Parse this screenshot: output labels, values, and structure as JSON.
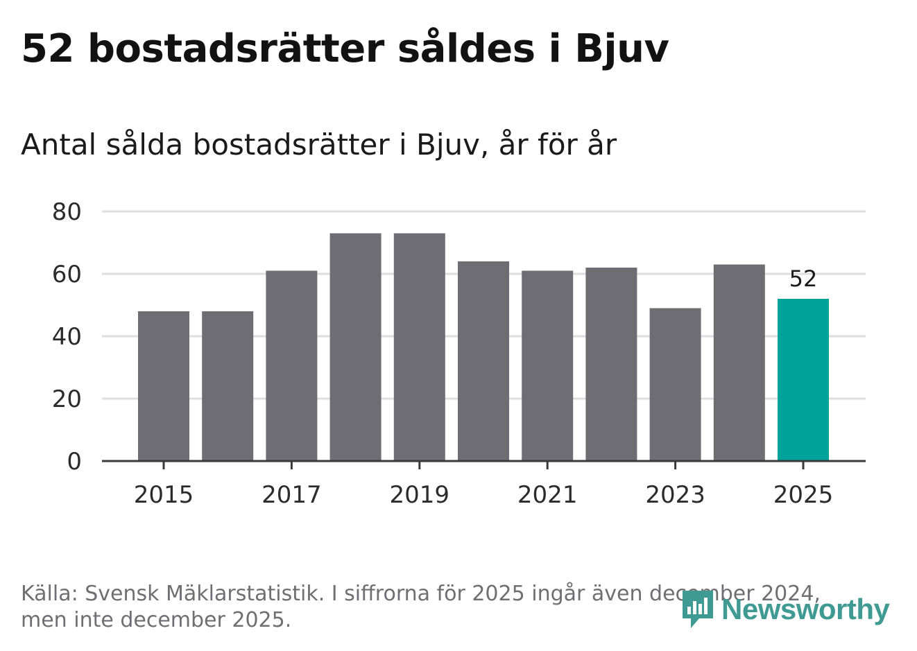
{
  "header": {
    "title": "52 bostadsrätter såldes i Bjuv",
    "subtitle": "Antal sålda bostadsrätter i Bjuv, år för år"
  },
  "chart_data": {
    "type": "bar",
    "categories": [
      "2015",
      "2016",
      "2017",
      "2018",
      "2019",
      "2020",
      "2021",
      "2022",
      "2023",
      "2024",
      "2025"
    ],
    "values": [
      48,
      48,
      61,
      73,
      73,
      64,
      61,
      62,
      49,
      63,
      52
    ],
    "x_tick_labels": [
      "2015",
      "2017",
      "2019",
      "2021",
      "2023",
      "2025"
    ],
    "y_ticks": [
      0,
      20,
      40,
      60,
      80
    ],
    "ylim": [
      0,
      80
    ],
    "highlight_index": 10,
    "highlight_label": "52",
    "bar_color": "#6e6d73",
    "highlight_color": "#00a39a",
    "grid_color": "#dedede",
    "grid": true,
    "title": "",
    "xlabel": "",
    "ylabel": ""
  },
  "footer": {
    "source_line1": "Källa: Svensk Mäklarstatistik. I siffrorna för 2025 ingår även december 2024,",
    "source_line2": "men inte december 2025.",
    "brand": "Newsworthy",
    "brand_color": "#3e9a92"
  }
}
